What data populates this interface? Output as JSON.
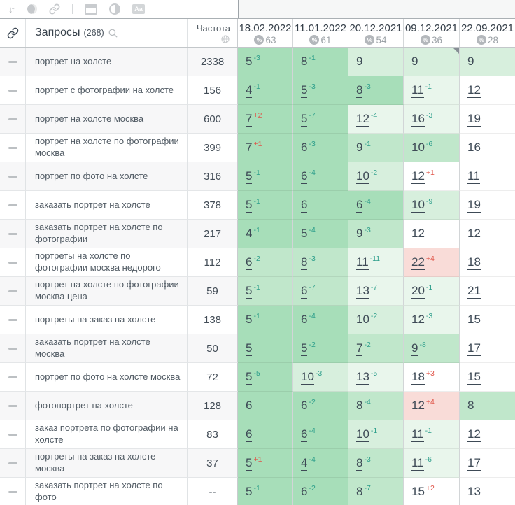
{
  "palette": {
    "cell": {
      "g1": "#a7deb9",
      "g2": "#c0e7cb",
      "g3": "#d7efdd",
      "g4": "#e9f6ec",
      "red": "#f9dcd8",
      "w": "#ffffff"
    },
    "delta_down_color": "#2d9e8b",
    "delta_up_color": "#e0564a",
    "position_color": "#3e4a56"
  },
  "toolbar": {
    "aa_label": "Aa"
  },
  "header": {
    "queries_label": "Запросы",
    "queries_count": "(268)",
    "frequency_label": "Частота",
    "dates": [
      {
        "date": "18.02.2022",
        "percent": "63"
      },
      {
        "date": "11.01.2022",
        "percent": "61"
      },
      {
        "date": "20.12.2021",
        "percent": "54"
      },
      {
        "date": "09.12.2021",
        "percent": "36"
      },
      {
        "date": "22.09.2021",
        "percent": "28"
      }
    ]
  },
  "rows": [
    {
      "keyword": "портрет на холсте",
      "frequency": "2338",
      "cells": [
        {
          "pos": "5",
          "delta": "-3",
          "bg": "g1"
        },
        {
          "pos": "8",
          "delta": "-1",
          "bg": "g1"
        },
        {
          "pos": "9",
          "delta": "",
          "bg": "g3"
        },
        {
          "pos": "9",
          "delta": "",
          "bg": "g3",
          "marker": true
        },
        {
          "pos": "9",
          "delta": "",
          "bg": "g3"
        }
      ]
    },
    {
      "keyword": "портрет с фотографии на холсте",
      "frequency": "156",
      "cells": [
        {
          "pos": "4",
          "delta": "-1",
          "bg": "g1"
        },
        {
          "pos": "5",
          "delta": "-3",
          "bg": "g1"
        },
        {
          "pos": "8",
          "delta": "-3",
          "bg": "g1"
        },
        {
          "pos": "11",
          "delta": "-1",
          "bg": "g4"
        },
        {
          "pos": "12",
          "delta": "",
          "bg": "w"
        }
      ]
    },
    {
      "keyword": "портрет на холсте москва",
      "frequency": "600",
      "cells": [
        {
          "pos": "7",
          "delta": "+2",
          "bg": "g1"
        },
        {
          "pos": "5",
          "delta": "-7",
          "bg": "g1"
        },
        {
          "pos": "12",
          "delta": "-4",
          "bg": "g4"
        },
        {
          "pos": "16",
          "delta": "-3",
          "bg": "g4"
        },
        {
          "pos": "19",
          "delta": "",
          "bg": "w"
        }
      ]
    },
    {
      "keyword": "портрет на холсте по фотографии москва",
      "frequency": "399",
      "cells": [
        {
          "pos": "7",
          "delta": "+1",
          "bg": "g1"
        },
        {
          "pos": "6",
          "delta": "-3",
          "bg": "g1"
        },
        {
          "pos": "9",
          "delta": "-1",
          "bg": "g2"
        },
        {
          "pos": "10",
          "delta": "-6",
          "bg": "g2"
        },
        {
          "pos": "16",
          "delta": "",
          "bg": "w"
        }
      ]
    },
    {
      "keyword": "портрет по фото на холсте",
      "frequency": "316",
      "cells": [
        {
          "pos": "5",
          "delta": "-1",
          "bg": "g1"
        },
        {
          "pos": "6",
          "delta": "-4",
          "bg": "g1"
        },
        {
          "pos": "10",
          "delta": "-2",
          "bg": "g3"
        },
        {
          "pos": "12",
          "delta": "+1",
          "bg": "w"
        },
        {
          "pos": "11",
          "delta": "",
          "bg": "w"
        }
      ]
    },
    {
      "keyword": "заказать портрет на холсте",
      "frequency": "378",
      "cells": [
        {
          "pos": "5",
          "delta": "-1",
          "bg": "g1"
        },
        {
          "pos": "6",
          "delta": "",
          "bg": "g1"
        },
        {
          "pos": "6",
          "delta": "-4",
          "bg": "g1"
        },
        {
          "pos": "10",
          "delta": "-9",
          "bg": "g3"
        },
        {
          "pos": "19",
          "delta": "",
          "bg": "w"
        }
      ]
    },
    {
      "keyword": "заказать портрет на холсте по фотографии",
      "frequency": "217",
      "cells": [
        {
          "pos": "4",
          "delta": "-1",
          "bg": "g1"
        },
        {
          "pos": "5",
          "delta": "-4",
          "bg": "g1"
        },
        {
          "pos": "9",
          "delta": "-3",
          "bg": "g2"
        },
        {
          "pos": "12",
          "delta": "",
          "bg": "w"
        },
        {
          "pos": "12",
          "delta": "",
          "bg": "w"
        }
      ]
    },
    {
      "keyword": "портреты на холсте по фотографии москва недорого",
      "frequency": "112",
      "cells": [
        {
          "pos": "6",
          "delta": "-2",
          "bg": "g2"
        },
        {
          "pos": "8",
          "delta": "-3",
          "bg": "g2"
        },
        {
          "pos": "11",
          "delta": "-11",
          "bg": "g4"
        },
        {
          "pos": "22",
          "delta": "+4",
          "bg": "red"
        },
        {
          "pos": "18",
          "delta": "",
          "bg": "w"
        }
      ]
    },
    {
      "keyword": "портрет на холсте по фотографии москва цена",
      "frequency": "59",
      "cells": [
        {
          "pos": "5",
          "delta": "-1",
          "bg": "g2"
        },
        {
          "pos": "6",
          "delta": "-7",
          "bg": "g2"
        },
        {
          "pos": "13",
          "delta": "-7",
          "bg": "g4"
        },
        {
          "pos": "20",
          "delta": "-1",
          "bg": "g4"
        },
        {
          "pos": "21",
          "delta": "",
          "bg": "w"
        }
      ]
    },
    {
      "keyword": "портреты на заказ на холсте",
      "frequency": "138",
      "cells": [
        {
          "pos": "5",
          "delta": "-1",
          "bg": "g1"
        },
        {
          "pos": "6",
          "delta": "-4",
          "bg": "g1"
        },
        {
          "pos": "10",
          "delta": "-2",
          "bg": "g3"
        },
        {
          "pos": "12",
          "delta": "-3",
          "bg": "g4"
        },
        {
          "pos": "15",
          "delta": "",
          "bg": "w"
        }
      ]
    },
    {
      "keyword": "заказать портрет на холсте москва",
      "frequency": "50",
      "cells": [
        {
          "pos": "5",
          "delta": "",
          "bg": "g1"
        },
        {
          "pos": "5",
          "delta": "-2",
          "bg": "g1"
        },
        {
          "pos": "7",
          "delta": "-2",
          "bg": "g2"
        },
        {
          "pos": "9",
          "delta": "-8",
          "bg": "g2"
        },
        {
          "pos": "17",
          "delta": "",
          "bg": "w"
        }
      ]
    },
    {
      "keyword": "портрет по фото на холсте москва",
      "frequency": "72",
      "cells": [
        {
          "pos": "5",
          "delta": "-5",
          "bg": "g1"
        },
        {
          "pos": "10",
          "delta": "-3",
          "bg": "g3"
        },
        {
          "pos": "13",
          "delta": "-5",
          "bg": "g4"
        },
        {
          "pos": "18",
          "delta": "+3",
          "bg": "w"
        },
        {
          "pos": "15",
          "delta": "",
          "bg": "w"
        }
      ]
    },
    {
      "keyword": "фотопортрет на холсте",
      "frequency": "128",
      "cells": [
        {
          "pos": "6",
          "delta": "",
          "bg": "g1"
        },
        {
          "pos": "6",
          "delta": "-2",
          "bg": "g1"
        },
        {
          "pos": "8",
          "delta": "-4",
          "bg": "g2"
        },
        {
          "pos": "12",
          "delta": "+4",
          "bg": "red"
        },
        {
          "pos": "8",
          "delta": "",
          "bg": "g2"
        }
      ]
    },
    {
      "keyword": "заказ портрета по фотографии на холсте",
      "frequency": "83",
      "cells": [
        {
          "pos": "6",
          "delta": "",
          "bg": "g1"
        },
        {
          "pos": "6",
          "delta": "-4",
          "bg": "g1"
        },
        {
          "pos": "10",
          "delta": "-1",
          "bg": "g3"
        },
        {
          "pos": "11",
          "delta": "-1",
          "bg": "g4"
        },
        {
          "pos": "12",
          "delta": "",
          "bg": "w"
        }
      ]
    },
    {
      "keyword": "портреты на заказ на холсте москва",
      "frequency": "37",
      "cells": [
        {
          "pos": "5",
          "delta": "+1",
          "bg": "g1"
        },
        {
          "pos": "4",
          "delta": "-4",
          "bg": "g1"
        },
        {
          "pos": "8",
          "delta": "-3",
          "bg": "g2"
        },
        {
          "pos": "11",
          "delta": "-6",
          "bg": "g4"
        },
        {
          "pos": "17",
          "delta": "",
          "bg": "w"
        }
      ]
    },
    {
      "keyword": "заказать портрет на холсте по фото",
      "frequency": "--",
      "cells": [
        {
          "pos": "5",
          "delta": "-1",
          "bg": "g1"
        },
        {
          "pos": "6",
          "delta": "-2",
          "bg": "g1"
        },
        {
          "pos": "8",
          "delta": "-7",
          "bg": "g2"
        },
        {
          "pos": "15",
          "delta": "+2",
          "bg": "w"
        },
        {
          "pos": "13",
          "delta": "",
          "bg": "w"
        }
      ]
    }
  ]
}
